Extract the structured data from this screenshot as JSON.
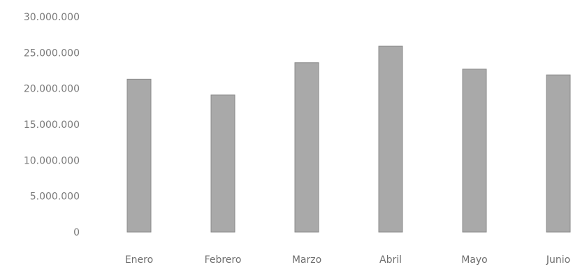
{
  "chart_data": {
    "type": "bar",
    "categories": [
      "Enero",
      "Febrero",
      "Marzo",
      "Abril",
      "Mayo",
      "Junio"
    ],
    "values": [
      21300000,
      19100000,
      23600000,
      25900000,
      22700000,
      21900000
    ],
    "ylim": [
      0,
      30000000
    ],
    "yticks": [
      0,
      5000000,
      10000000,
      15000000,
      20000000,
      25000000,
      30000000
    ],
    "ytick_labels": [
      "0",
      "5.000.000",
      "10.000.000",
      "15.000.000",
      "20.000.000",
      "25.000.000",
      "30.000.000"
    ],
    "grid": false,
    "legend": "none",
    "bar_color": "#a9a9a9"
  }
}
